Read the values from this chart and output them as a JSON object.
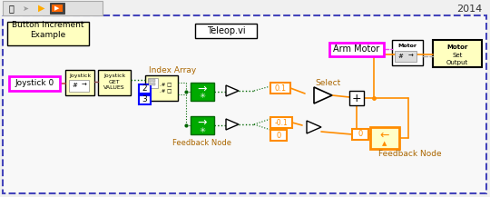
{
  "bg_color": "#f0f0f0",
  "title_year": "2014",
  "label_button_increment": "Button Increment\nExample",
  "label_teleop": "Teleop.vi",
  "label_joystick0": "Joystick 0",
  "label_index_array": "Index Array",
  "label_feedback_node_bottom": "Feedback Node",
  "label_arm_motor": "Arm Motor",
  "label_select": "Select",
  "label_feedback_node_right": "Feedback Node",
  "val_01": "0.1",
  "val_neg01": "-0.1",
  "val_0a": "0",
  "val_0b": "0",
  "yellow": "#ffffc0",
  "green_block": "#00aa00",
  "orange": "#ff8c00",
  "magenta": "#ff00ff",
  "blue_border": "#0000ff",
  "outer_border": "#4444bb"
}
